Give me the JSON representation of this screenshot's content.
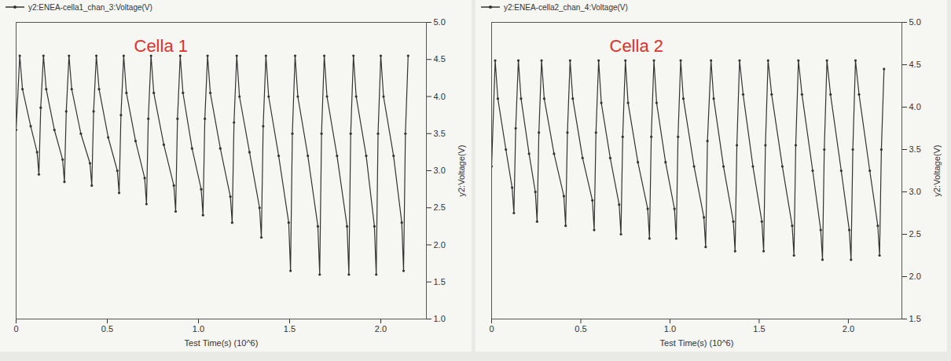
{
  "chart_data": [
    {
      "type": "line",
      "title": "Cella 1",
      "xlabel": "Test Time(s) (10^6)",
      "ylabel": "y2:Voltage(V)",
      "xlim": [
        0,
        2.25
      ],
      "ylim": [
        1.0,
        5.0
      ],
      "xticks": [
        0,
        0.5,
        {
          "value": 1,
          "label": "1.0"
        },
        1.5,
        {
          "value": 2,
          "label": "2.0"
        }
      ],
      "yticks": [
        {
          "value": 1,
          "label": "1.0"
        },
        1.5,
        {
          "value": 2,
          "label": "2.0"
        },
        2.5,
        {
          "value": 3,
          "label": "3.0"
        },
        3.5,
        {
          "value": 4,
          "label": "4.0"
        },
        4.5,
        {
          "value": 5,
          "label": "5.0"
        }
      ],
      "grid": false,
      "legend": "top-left",
      "x": [
        0.0,
        0.02,
        0.035,
        0.08,
        0.115,
        0.125,
        0.135,
        0.15,
        0.165,
        0.21,
        0.255,
        0.265,
        0.275,
        0.29,
        0.305,
        0.355,
        0.405,
        0.415,
        0.425,
        0.44,
        0.455,
        0.505,
        0.555,
        0.565,
        0.575,
        0.59,
        0.605,
        0.655,
        0.705,
        0.715,
        0.725,
        0.74,
        0.755,
        0.81,
        0.865,
        0.875,
        0.885,
        0.9,
        0.915,
        0.965,
        1.015,
        1.025,
        1.035,
        1.05,
        1.065,
        1.12,
        1.175,
        1.185,
        1.195,
        1.21,
        1.225,
        1.28,
        1.335,
        1.345,
        1.355,
        1.37,
        1.385,
        1.44,
        1.495,
        1.505,
        1.515,
        1.53,
        1.545,
        1.6,
        1.655,
        1.665,
        1.675,
        1.69,
        1.705,
        1.76,
        1.815,
        1.825,
        1.835,
        1.85,
        1.865,
        1.92,
        1.965,
        1.975,
        1.985,
        2.0,
        2.015,
        2.07,
        2.115,
        2.125,
        2.135,
        2.15
      ],
      "series": [
        {
          "name": "y2:ENEA-cella1_chan_3:Voltage(V)",
          "color": "#333333",
          "marker": "circle",
          "line_style": "solid",
          "values": [
            3.55,
            4.55,
            4.1,
            3.6,
            3.25,
            2.95,
            3.85,
            4.55,
            4.1,
            3.55,
            3.15,
            2.85,
            3.8,
            4.55,
            4.1,
            3.5,
            3.1,
            2.8,
            3.8,
            4.55,
            4.1,
            3.45,
            3.0,
            2.7,
            3.75,
            4.55,
            4.05,
            3.4,
            2.9,
            2.55,
            3.7,
            4.55,
            4.05,
            3.35,
            2.8,
            2.45,
            3.7,
            4.55,
            4.05,
            3.3,
            2.75,
            2.4,
            3.7,
            4.55,
            4.05,
            3.3,
            2.65,
            2.3,
            3.65,
            4.55,
            4.0,
            3.25,
            2.5,
            2.1,
            3.6,
            4.55,
            4.0,
            3.2,
            2.3,
            1.65,
            3.5,
            4.55,
            4.0,
            3.2,
            2.25,
            1.6,
            3.5,
            4.55,
            4.0,
            3.2,
            2.25,
            1.6,
            3.5,
            4.55,
            4.0,
            3.2,
            2.25,
            1.6,
            3.5,
            4.55,
            4.0,
            3.2,
            2.3,
            1.65,
            3.5,
            4.55
          ]
        }
      ]
    },
    {
      "type": "line",
      "title": "Cella 2",
      "xlabel": "Test Time(s) (10^6)",
      "ylabel": "y2:Voltage(V)",
      "xlim": [
        0,
        2.3
      ],
      "ylim": [
        1.5,
        5.0
      ],
      "xticks": [
        0,
        0.5,
        {
          "value": 1,
          "label": "1.0"
        },
        1.5,
        {
          "value": 2,
          "label": "2.0"
        }
      ],
      "yticks": [
        1.5,
        {
          "value": 2,
          "label": "2.0"
        },
        2.5,
        {
          "value": 3,
          "label": "3.0"
        },
        3.5,
        {
          "value": 4,
          "label": "4.0"
        },
        4.5,
        {
          "value": 5,
          "label": "5.0"
        }
      ],
      "grid": false,
      "legend": "top-left",
      "x": [
        0.0,
        0.02,
        0.035,
        0.08,
        0.115,
        0.125,
        0.135,
        0.15,
        0.165,
        0.21,
        0.245,
        0.255,
        0.265,
        0.28,
        0.295,
        0.35,
        0.405,
        0.415,
        0.425,
        0.44,
        0.455,
        0.51,
        0.565,
        0.575,
        0.585,
        0.6,
        0.615,
        0.665,
        0.715,
        0.725,
        0.735,
        0.75,
        0.765,
        0.82,
        0.875,
        0.885,
        0.895,
        0.91,
        0.925,
        0.975,
        1.025,
        1.035,
        1.045,
        1.06,
        1.075,
        1.135,
        1.19,
        1.2,
        1.21,
        1.23,
        1.245,
        1.3,
        1.355,
        1.365,
        1.375,
        1.39,
        1.41,
        1.465,
        1.515,
        1.525,
        1.535,
        1.55,
        1.57,
        1.63,
        1.685,
        1.695,
        1.705,
        1.72,
        1.74,
        1.8,
        1.845,
        1.855,
        1.865,
        1.88,
        1.9,
        1.96,
        2.005,
        2.015,
        2.025,
        2.04,
        2.06,
        2.12,
        2.165,
        2.175,
        2.185,
        2.2
      ],
      "series": [
        {
          "name": "y2:ENEA-cella2_chan_4:Voltage(V)",
          "color": "#333333",
          "marker": "circle",
          "line_style": "solid",
          "values": [
            3.3,
            4.55,
            4.1,
            3.5,
            3.05,
            2.75,
            3.75,
            4.55,
            4.1,
            3.45,
            3.0,
            2.65,
            3.7,
            4.55,
            4.1,
            3.45,
            2.95,
            2.6,
            3.7,
            4.55,
            4.1,
            3.4,
            2.9,
            2.55,
            3.7,
            4.55,
            4.05,
            3.4,
            2.85,
            2.5,
            3.65,
            4.55,
            4.05,
            3.35,
            2.8,
            2.45,
            3.65,
            4.55,
            4.05,
            3.35,
            2.8,
            2.45,
            3.65,
            4.55,
            4.1,
            3.3,
            2.7,
            2.35,
            3.6,
            4.55,
            4.1,
            3.3,
            2.65,
            2.3,
            3.55,
            4.55,
            4.15,
            3.3,
            2.65,
            2.3,
            3.55,
            4.55,
            4.15,
            3.3,
            2.6,
            2.25,
            3.55,
            4.55,
            4.15,
            3.25,
            2.55,
            2.2,
            3.5,
            4.55,
            4.15,
            3.25,
            2.55,
            2.2,
            3.5,
            4.55,
            4.15,
            3.25,
            2.6,
            2.25,
            3.5,
            4.45
          ]
        }
      ]
    }
  ]
}
